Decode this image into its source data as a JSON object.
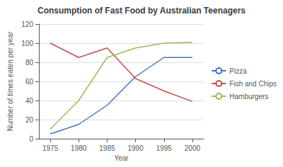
{
  "chart_data": {
    "type": "line",
    "title": "Consumption of Fast Food by Australian Teenagers",
    "xlabel": "Year",
    "ylabel": "Number of times eaten per year",
    "x": [
      1975,
      1980,
      1985,
      1990,
      1995,
      2000
    ],
    "series": [
      {
        "name": "Pizza",
        "color": "#4472C4",
        "values": [
          5,
          15,
          35,
          65,
          85,
          85
        ]
      },
      {
        "name": "Fish and Chips",
        "color": "#C0504D",
        "values": [
          100,
          85,
          95,
          63,
          50,
          39
        ]
      },
      {
        "name": "Hamburgers",
        "color": "#9BBB59",
        "values": [
          10,
          40,
          85,
          95,
          100,
          101
        ]
      }
    ],
    "xlim": [
      1973,
      2002
    ],
    "xticks": [
      1975,
      1980,
      1985,
      1990,
      1995,
      2000
    ],
    "ylim": [
      0,
      120
    ],
    "yticks": [
      0,
      20,
      40,
      60,
      80,
      100,
      120
    ],
    "grid": true,
    "legend": "right"
  }
}
